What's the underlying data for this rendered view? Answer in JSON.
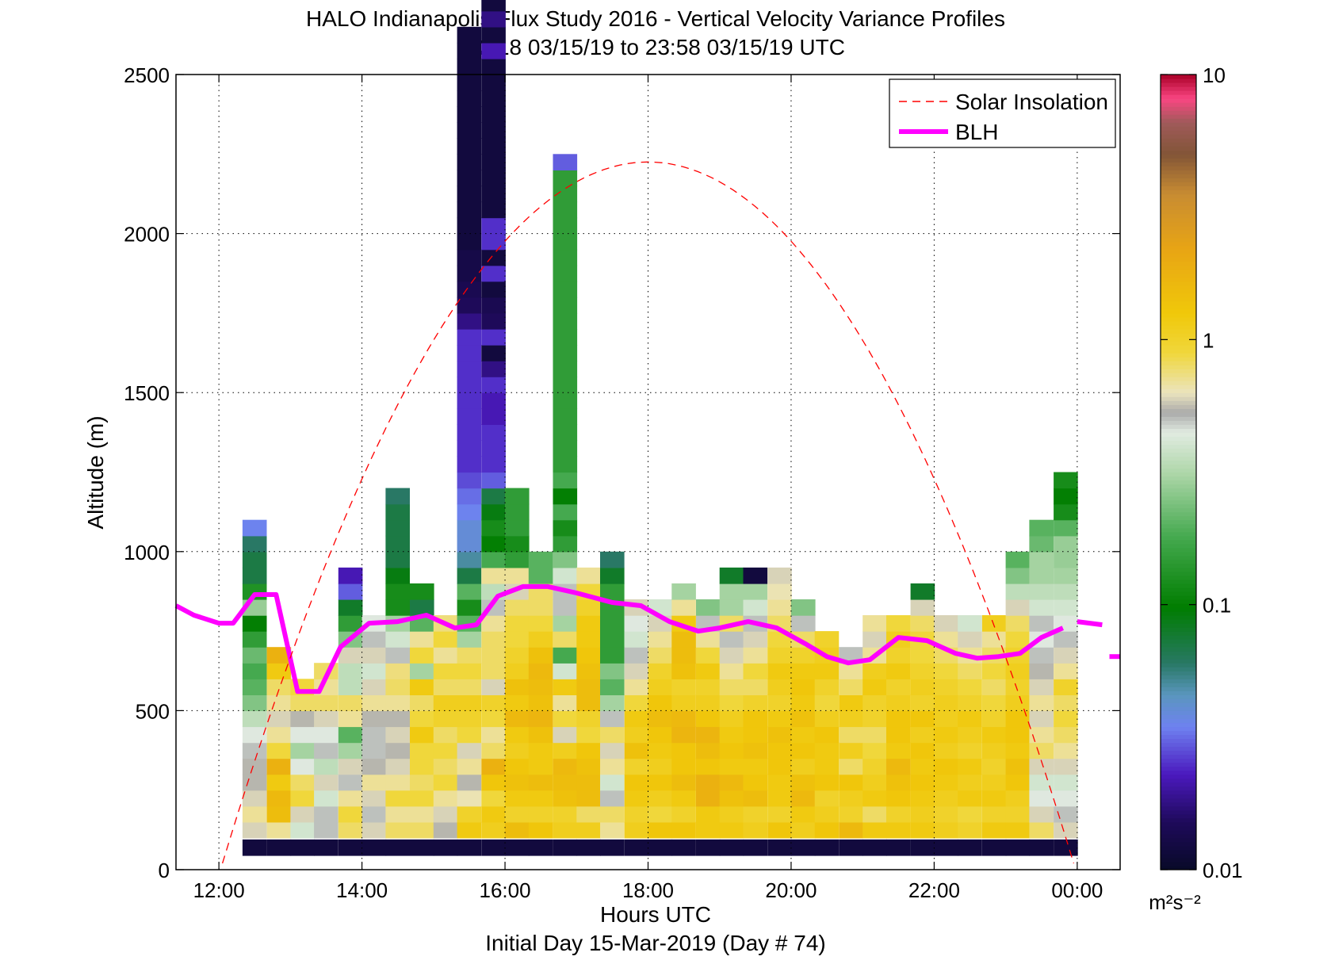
{
  "chart_data": {
    "type": "heatmap",
    "title": "HALO Indianapolis Flux Study 2016 - Vertical Velocity Variance Profiles",
    "subtitle": "12:18 03/15/19 to 23:58 03/15/19  UTC",
    "xlabel": "Hours UTC",
    "xlabel2": "Initial Day 15-Mar-2019 (Day # 74)",
    "ylabel": "Altitude (m)",
    "xlim": [
      11.4,
      24.6
    ],
    "ylim": [
      0,
      2500
    ],
    "x_ticks": [
      12,
      14,
      16,
      18,
      20,
      22,
      24
    ],
    "x_tick_labels": [
      "12:00",
      "14:00",
      "16:00",
      "18:00",
      "20:00",
      "22:00",
      "00:00"
    ],
    "y_ticks": [
      0,
      500,
      1000,
      1500,
      2000,
      2500
    ],
    "y_tick_labels": [
      "0",
      "500",
      "1000",
      "1500",
      "2000",
      "2500"
    ],
    "grid": true,
    "legend": {
      "position": "top-right",
      "entries": [
        {
          "label": "Solar Insolation",
          "color": "#ff0000",
          "style": "dashed"
        },
        {
          "label": "BLH",
          "color": "#ff00ff",
          "style": "solid"
        }
      ]
    },
    "colorbar": {
      "scale": "log",
      "range": [
        0.01,
        10
      ],
      "tick_values": [
        0.01,
        0.1,
        1,
        10
      ],
      "tick_labels": [
        "0.01",
        "0.1",
        "1",
        "10"
      ],
      "units": "m²s⁻²"
    },
    "cell_height_m": 50,
    "column_width_h": 0.333,
    "column_x_starts_h": [
      12.33,
      12.67,
      13,
      13.33,
      13.67,
      14,
      14.33,
      14.67,
      15,
      15.33,
      15.67,
      16,
      16.33,
      16.67,
      17,
      17.33,
      17.67,
      18,
      18.33,
      18.67,
      19,
      19.33,
      19.67,
      20,
      20.33,
      20.67,
      21,
      21.33,
      21.67,
      22,
      22.33,
      22.67,
      23,
      23.33,
      23.67
    ],
    "columns": [
      [
        0.012,
        0.6,
        0.7,
        0.6,
        0.55,
        0.55,
        0.5,
        0.45,
        0.35,
        0.25,
        0.2,
        0.18,
        0.22,
        0.15,
        0.1,
        0.28,
        0.13,
        0.07,
        0.07,
        0.06,
        0.035
      ],
      [
        0.012,
        0.7,
        1.5,
        1.6,
        1.2,
        1.8,
        0.9,
        0.7,
        0.6,
        0.7,
        0.8,
        1.2,
        1.8
      ],
      [
        0.012,
        0.4,
        0.6,
        0.9,
        0.8,
        0.45,
        0.3,
        0.45,
        0.55,
        0.8,
        0.9
      ],
      [
        0.012,
        0.5,
        0.5,
        0.4,
        0.6,
        0.35,
        0.5,
        0.45,
        0.6,
        0.8,
        0.7,
        0.8
      ],
      [
        0.012,
        0.8,
        0.9,
        0.7,
        0.5,
        0.6,
        0.3,
        0.2,
        0.7,
        0.8,
        0.35,
        0.35,
        0.6,
        0.25,
        0.15,
        0.08,
        0.03,
        0.022
      ],
      [
        0.012,
        0.6,
        0.5,
        0.6,
        0.7,
        0.55,
        0.5,
        0.5,
        0.55,
        0.7,
        0.6,
        0.4,
        0.6,
        0.5,
        0.45
      ],
      [
        0.012,
        0.8,
        0.7,
        0.9,
        0.7,
        0.6,
        0.55,
        0.6,
        0.55,
        0.7,
        0.8,
        0.75,
        0.5,
        0.4,
        0.3,
        0.12,
        0.12,
        0.09,
        0.07,
        0.07,
        0.07,
        0.07,
        0.06
      ],
      [
        0.012,
        0.8,
        0.7,
        0.9,
        0.8,
        0.9,
        0.9,
        1.2,
        0.9,
        0.8,
        1.2,
        0.3,
        0.9,
        0.7,
        0.2,
        0.07,
        0.12
      ],
      [
        0.012,
        0.55,
        0.6,
        0.7,
        0.9,
        0.8,
        0.9,
        0.8,
        1.0,
        1.1,
        0.8,
        0.9,
        0.7,
        0.9,
        0.75
      ],
      [
        0.012,
        1.2,
        1.0,
        0.65,
        0.55,
        0.7,
        0.6,
        0.9,
        1.0,
        1.1,
        0.8,
        0.9,
        0.8,
        0.3,
        0.2,
        0.12,
        0.2,
        0.07,
        0.05,
        0.04,
        0.04,
        0.035,
        0.032,
        0.028,
        0.025,
        0.025,
        0.025,
        0.025,
        0.025,
        0.025,
        0.025,
        0.025,
        0.025,
        0.018,
        0.015,
        0.014,
        0.013,
        0.013,
        0.012,
        0.012,
        0.012,
        0.012,
        0.012,
        0.012,
        0.012,
        0.012,
        0.012,
        0.012,
        0.012,
        0.012,
        0.012,
        0.012
      ],
      [
        0.012,
        1.1,
        1.2,
        0.9,
        1.3,
        1.8,
        0.8,
        0.7,
        0.9,
        1.0,
        0.6,
        0.8,
        0.8,
        0.8,
        0.7,
        0.5,
        0.35,
        0.7,
        0.18,
        0.1,
        0.12,
        0.09,
        0.07,
        0.03,
        0.025,
        0.025,
        0.025,
        0.022,
        0.022,
        0.025,
        0.018,
        0.012,
        0.025,
        0.015,
        0.014,
        0.012,
        0.025,
        0.012,
        0.025,
        0.025,
        0.012,
        0.012,
        0.012,
        0.012,
        0.012,
        0.012,
        0.012,
        0.012,
        0.012,
        0.012,
        0.022,
        0.012,
        0.018,
        0.012,
        0.012,
        0.012,
        0.02,
        0.012,
        0.045,
        0.04
      ],
      [
        0.012,
        1.5,
        1.0,
        1.2,
        1.4,
        1.3,
        1.1,
        1.2,
        1.6,
        1.2,
        1.4,
        1.1,
        1.0,
        0.9,
        0.9,
        0.8,
        0.6,
        0.7,
        0.15,
        0.12,
        0.15,
        0.15,
        0.15
      ],
      [
        0.012,
        1.3,
        1.0,
        1.2,
        1.5,
        1.2,
        1.2,
        1.4,
        1.7,
        1.4,
        1.5,
        1.6,
        1.4,
        1.1,
        0.9,
        0.8,
        0.8,
        0.2,
        0.2
      ],
      [
        0.012,
        1.1,
        1.0,
        1.4,
        1.5,
        1.6,
        1.1,
        0.6,
        0.9,
        0.7,
        1.2,
        0.4,
        0.18,
        0.8,
        0.3,
        0.5,
        0.5,
        0.4,
        0.25,
        0.15,
        0.12,
        0.18,
        0.1,
        0.18,
        0.15,
        0.15,
        0.15,
        0.15,
        0.15,
        0.15,
        0.15,
        0.15,
        0.15,
        0.15,
        0.15,
        0.15,
        0.15,
        0.15,
        0.15,
        0.15,
        0.15,
        0.15,
        0.15,
        0.03
      ],
      [
        0.012,
        1.1,
        0.8,
        1.5,
        1.5,
        1.4,
        1.3,
        0.9,
        1.0,
        1.5,
        1.5,
        1.4,
        1.3,
        1.2,
        1.2,
        1.0,
        0.9,
        0.7
      ],
      [
        0.012,
        0.7,
        0.8,
        0.5,
        0.4,
        0.7,
        0.6,
        0.8,
        0.5,
        0.3,
        0.2,
        0.25,
        0.15,
        0.15,
        0.15,
        0.15,
        0.15,
        0.08,
        0.06
      ],
      [
        0.012,
        1.1,
        1.0,
        1.2,
        1.3,
        1.0,
        1.4,
        1.1,
        1.2,
        0.9,
        0.7,
        0.6,
        0.5,
        0.4,
        0.45,
        0.6
      ],
      [
        0.012,
        1.3,
        0.9,
        1.1,
        1.3,
        1.1,
        1.2,
        1.3,
        1.5,
        1.3,
        1.1,
        1.0,
        0.8,
        0.7,
        0.6,
        0.4
      ],
      [
        0.012,
        1.3,
        1.0,
        1.2,
        1.5,
        1.3,
        1.3,
        1.7,
        1.6,
        1.1,
        1.0,
        1.4,
        1.5,
        1.5,
        1.2,
        0.7,
        0.3
      ],
      [
        0.012,
        1.2,
        1.2,
        1.8,
        1.8,
        1.3,
        1.5,
        1.7,
        1.3,
        1.1,
        1.0,
        1.2,
        0.9,
        0.7,
        0.5,
        0.25
      ],
      [
        0.012,
        1.2,
        1.1,
        1.4,
        1.6,
        1.2,
        1.3,
        1.2,
        1.1,
        0.9,
        0.8,
        0.7,
        0.6,
        0.5,
        0.8,
        0.3,
        0.3,
        0.08
      ],
      [
        0.012,
        1.1,
        1.0,
        1.5,
        1.3,
        1.2,
        1.4,
        1.3,
        1.3,
        1.0,
        0.8,
        0.9,
        0.7,
        0.6,
        0.5,
        0.4,
        0.3,
        0.012
      ],
      [
        0.012,
        1.3,
        1.0,
        1.2,
        1.2,
        1.3,
        1.3,
        1.4,
        1.2,
        1.0,
        1.1,
        1.2,
        1.0,
        0.9,
        0.8,
        0.7,
        0.65,
        0.6
      ],
      [
        0.012,
        1.1,
        1.2,
        1.6,
        1.4,
        1.1,
        1.3,
        1.2,
        1.4,
        1.2,
        1.3,
        1.2,
        1.0,
        0.8,
        0.5,
        0.25
      ],
      [
        0.012,
        1.3,
        1.1,
        1.0,
        1.3,
        1.2,
        1.2,
        1.3,
        1.1,
        0.9,
        1.0,
        1.2,
        1.1,
        1.0
      ],
      [
        0.012,
        1.6,
        1.0,
        1.1,
        1.3,
        0.8,
        1.1,
        0.8,
        1.1,
        1.2,
        0.8,
        0.7,
        0.5
      ],
      [
        0.012,
        1.2,
        0.8,
        1.2,
        1.1,
        1.0,
        0.9,
        0.8,
        1.0,
        1.0,
        1.2,
        1.1,
        0.7,
        0.6,
        0.7
      ],
      [
        0.012,
        1.2,
        1.0,
        1.3,
        1.4,
        1.6,
        1.2,
        1.3,
        1.3,
        1.1,
        1.0,
        1.2,
        1.0,
        1.1,
        0.9
      ],
      [
        0.012,
        1.2,
        1.1,
        1.2,
        1.3,
        1.2,
        1.3,
        1.1,
        1.3,
        1.0,
        1.1,
        1.0,
        0.9,
        0.9,
        0.8,
        0.6,
        0.08
      ],
      [
        0.012,
        1.1,
        1.0,
        1.1,
        1.2,
        1.3,
        1.1,
        1.2,
        1.1,
        1.1,
        1.0,
        0.9,
        0.8,
        0.7,
        0.6
      ],
      [
        0.012,
        1.0,
        0.9,
        1.2,
        1.1,
        1.2,
        1.0,
        1.1,
        1.2,
        1.0,
        0.9,
        0.8,
        0.7,
        0.6,
        0.4
      ],
      [
        0.012,
        1.2,
        1.0,
        1.2,
        1.1,
        1.0,
        1.1,
        1.2,
        1.0,
        0.9,
        0.8,
        0.9,
        0.8,
        0.7,
        1.1
      ],
      [
        0.012,
        1.2,
        1.0,
        1.1,
        1.3,
        1.4,
        1.2,
        1.3,
        1.3,
        1.1,
        1.0,
        1.1,
        1.0,
        0.9,
        0.8,
        0.6,
        0.35,
        0.25,
        0.2
      ],
      [
        0.012,
        0.8,
        0.6,
        0.45,
        0.4,
        0.6,
        0.8,
        0.7,
        0.6,
        0.7,
        0.6,
        0.55,
        0.5,
        0.45,
        0.5,
        0.4,
        0.35,
        0.3,
        0.3,
        0.22,
        0.2
      ],
      [
        0.012,
        0.6,
        0.5,
        0.45,
        0.4,
        0.6,
        0.7,
        0.8,
        0.9,
        0.8,
        1.0,
        0.7,
        0.6,
        0.5,
        0.45,
        0.4,
        0.35,
        0.3,
        0.28,
        0.28,
        0.2,
        0.12,
        0.1,
        0.12
      ]
    ],
    "series": [
      {
        "name": "BLH",
        "x": [
          11.4,
          11.65,
          12.0,
          12.2,
          12.5,
          12.8,
          13.1,
          13.4,
          13.7,
          14.1,
          14.5,
          14.9,
          15.3,
          15.6,
          15.9,
          16.25,
          16.6,
          17.0,
          17.5,
          17.9,
          18.3,
          18.7,
          19.0,
          19.4,
          19.8,
          20.2,
          20.5,
          20.8,
          21.1,
          21.5,
          21.9,
          22.3,
          22.6,
          22.9,
          23.2,
          23.5,
          23.8
        ],
        "y": [
          830,
          800,
          775,
          775,
          865,
          865,
          560,
          560,
          700,
          775,
          780,
          800,
          760,
          770,
          860,
          890,
          890,
          870,
          840,
          830,
          780,
          750,
          760,
          780,
          760,
          710,
          670,
          650,
          660,
          730,
          720,
          680,
          665,
          670,
          680,
          730,
          760
        ]
      },
      {
        "name": "BLH",
        "x": [
          24.0,
          24.35
        ],
        "y": [
          780,
          770
        ]
      },
      {
        "name": "BLH",
        "x": [
          24.45,
          24.6
        ],
        "y": [
          670,
          670
        ]
      },
      {
        "name": "Solar Insolation",
        "x": [
          12.05,
          18.0,
          23.95
        ],
        "y": [
          20,
          2225,
          20
        ]
      }
    ]
  }
}
